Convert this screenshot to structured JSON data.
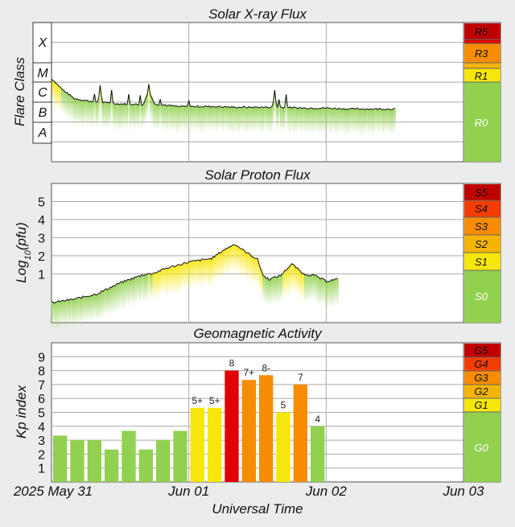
{
  "colors": {
    "green": "#92d050",
    "yellow": "#f6e60a",
    "gold": "#f4b400",
    "orange": "#f78c00",
    "red_orange": "#f33d00",
    "red": "#e00000",
    "dark_red": "#c00000"
  },
  "x_axis": {
    "title": "Universal Time",
    "range": [
      "2025-05-31T00:00",
      "2025-06-03T00:00"
    ],
    "ticks": [
      {
        "date": "2025-05-31",
        "label": "2025 May 31"
      },
      {
        "date": "2025-06-01",
        "label": "Jun 01"
      },
      {
        "date": "2025-06-02",
        "label": "Jun 02"
      },
      {
        "date": "2025-06-03",
        "label": "Jun 03"
      }
    ]
  },
  "chart_data": [
    {
      "type": "area",
      "title": "Solar X-ray Flux",
      "ylabel": "Flare Class",
      "y_scale": "log",
      "ylim": [
        "1e-9",
        "1e-2"
      ],
      "class_labels": [
        "X",
        "M",
        "C",
        "B",
        "A"
      ],
      "scale_labels": [
        "R5",
        "R3",
        "R1",
        "R0"
      ],
      "series": [
        {
          "x_hours": [
            0,
            1,
            2,
            3,
            4,
            6,
            8,
            10,
            12,
            14,
            16,
            17,
            18,
            20,
            22,
            24,
            28,
            32,
            36,
            40,
            44,
            48,
            52,
            56,
            60
          ],
          "values": [
            "1.5e-5",
            "8e-6",
            "4e-6",
            "2.5e-6",
            "1.5e-6",
            "1.2e-6",
            "1.0e-6",
            "9e-7",
            "8e-7",
            "8e-7",
            "7e-7",
            "4e-6",
            "8e-7",
            "7e-7",
            "6e-7",
            "6e-7",
            "6e-7",
            "5.5e-7",
            "5.5e-7",
            "5.5e-7",
            "5e-7",
            "5e-7",
            "4.5e-7",
            "4.5e-7",
            "4.5e-7"
          ]
        }
      ],
      "peaks": [
        {
          "x_hours": 7.5,
          "value": "2.5e-6"
        },
        {
          "x_hours": 8.5,
          "value": "7e-6"
        },
        {
          "x_hours": 10.5,
          "value": "4e-6"
        },
        {
          "x_hours": 13.5,
          "value": "2.5e-6"
        },
        {
          "x_hours": 15.5,
          "value": "2.2e-6"
        },
        {
          "x_hours": 17.0,
          "value": "8e-6"
        },
        {
          "x_hours": 19.0,
          "value": "1.4e-6"
        },
        {
          "x_hours": 24.0,
          "value": "1.2e-6"
        },
        {
          "x_hours": 39.0,
          "value": "4e-6"
        },
        {
          "x_hours": 39.8,
          "value": "1.8e-6"
        },
        {
          "x_hours": 41.0,
          "value": "2.4e-6"
        }
      ]
    },
    {
      "type": "area",
      "title": "Solar Proton Flux",
      "ylabel": "Log10(pfu)",
      "ylim": [
        -1.7,
        6
      ],
      "yticks": [
        1,
        2,
        3,
        4,
        5
      ],
      "scale_labels": [
        "S5",
        "S4",
        "S3",
        "S2",
        "S1",
        "S0"
      ],
      "series": [
        {
          "x_hours": [
            0,
            4,
            8,
            12,
            16,
            18,
            20,
            24,
            28,
            30,
            32,
            34,
            36,
            37,
            38,
            40,
            42,
            44,
            46,
            48,
            50
          ],
          "values": [
            -0.6,
            -0.4,
            -0.1,
            0.5,
            0.95,
            1.05,
            1.3,
            1.65,
            1.85,
            2.3,
            2.65,
            2.2,
            1.8,
            0.9,
            0.7,
            0.9,
            1.55,
            1.0,
            0.9,
            0.6,
            0.7
          ]
        }
      ]
    },
    {
      "type": "bar",
      "title": "Geomagnetic Activity",
      "ylabel": "Kp index",
      "ylim": [
        0,
        10
      ],
      "yticks": [
        1,
        2,
        3,
        4,
        5,
        6,
        7,
        8,
        9
      ],
      "scale_labels": [
        "G5",
        "G4",
        "G3",
        "G2",
        "G1",
        "G0"
      ],
      "bar_hours": 3,
      "bars": [
        {
          "value": 3.33,
          "label": "",
          "color": "#92d050"
        },
        {
          "value": 3.0,
          "label": "",
          "color": "#92d050"
        },
        {
          "value": 3.0,
          "label": "",
          "color": "#92d050"
        },
        {
          "value": 2.33,
          "label": "",
          "color": "#92d050"
        },
        {
          "value": 3.67,
          "label": "",
          "color": "#92d050"
        },
        {
          "value": 2.33,
          "label": "",
          "color": "#92d050"
        },
        {
          "value": 3.0,
          "label": "",
          "color": "#92d050"
        },
        {
          "value": 3.67,
          "label": "",
          "color": "#92d050"
        },
        {
          "value": 5.33,
          "label": "5+",
          "color": "#f6e60a"
        },
        {
          "value": 5.33,
          "label": "5+",
          "color": "#f6e60a"
        },
        {
          "value": 8.0,
          "label": "8",
          "color": "#e00000"
        },
        {
          "value": 7.33,
          "label": "7+",
          "color": "#f78c00"
        },
        {
          "value": 7.67,
          "label": "8-",
          "color": "#f78c00"
        },
        {
          "value": 5.0,
          "label": "5",
          "color": "#f6e60a"
        },
        {
          "value": 7.0,
          "label": "7",
          "color": "#f78c00"
        },
        {
          "value": 4.0,
          "label": "4",
          "color": "#92d050"
        }
      ]
    }
  ]
}
